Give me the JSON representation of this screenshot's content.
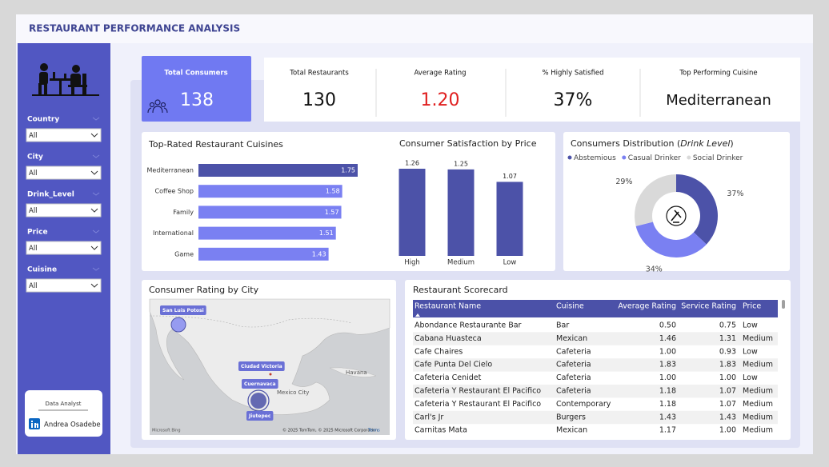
{
  "header": {
    "title": "RESTAURANT PERFORMANCE ANALYSIS"
  },
  "sidebar": {
    "filters": [
      {
        "label": "Country",
        "value": "All"
      },
      {
        "label": "City",
        "value": "All"
      },
      {
        "label": "Drink_Level",
        "value": "All"
      },
      {
        "label": "Price",
        "value": "All"
      },
      {
        "label": "Cuisine",
        "value": "All"
      }
    ],
    "analyst": {
      "role": "Data Analyst",
      "name": "Andrea Osadebe"
    }
  },
  "kpis": [
    {
      "label": "Total Consumers",
      "value": "138"
    },
    {
      "label": "Total Restaurants",
      "value": "130"
    },
    {
      "label": "Average Rating",
      "value": "1.20"
    },
    {
      "label": "% Highly Satisfied",
      "value": "37%"
    },
    {
      "label": "Top Performing Cuisine",
      "value": "Mediterranean"
    }
  ],
  "chart_data": [
    {
      "type": "bar",
      "orientation": "horizontal",
      "title": "Top-Rated Restaurant Cuisines",
      "categories": [
        "Mediterranean",
        "Coffee Shop",
        "Family",
        "International",
        "Game"
      ],
      "values": [
        1.75,
        1.58,
        1.57,
        1.51,
        1.43
      ],
      "colors": [
        "#4c52a8",
        "#7a80f2",
        "#7a80f2",
        "#7a80f2",
        "#7a80f2"
      ]
    },
    {
      "type": "bar",
      "title": "Consumer Satisfaction by Price",
      "categories": [
        "High",
        "Medium",
        "Low"
      ],
      "values": [
        1.26,
        1.25,
        1.07
      ],
      "color": "#4c52a8"
    },
    {
      "type": "pie",
      "title": [
        "Consumers Distribution (",
        "Drink Level",
        ")"
      ],
      "categories": [
        "Abstemious",
        "Casual Drinker",
        "Social Drinker"
      ],
      "values": [
        37,
        34,
        29
      ],
      "value_labels": [
        "37%",
        "34%",
        "29%"
      ],
      "colors": [
        "#4c52a8",
        "#7a80f2",
        "#d9d9d9"
      ],
      "legend": "top-left"
    }
  ],
  "map": {
    "title": "Consumer Rating by City",
    "cities": [
      "San Luis Potosi",
      "Ciudad Victoria",
      "Cuernavaca",
      "Jiutepec"
    ],
    "places": [
      "Havana",
      "Mexico City"
    ],
    "credit": "Microsoft Bing",
    "attribution": "© 2025 TomTom, © 2025 Microsoft Corporation",
    "terms": "Terms"
  },
  "table": {
    "title": "Restaurant Scorecard",
    "columns": [
      "Restaurant Name",
      "Cuisine",
      "Average Rating",
      "Service Rating",
      "Price"
    ],
    "rows": [
      [
        "Abondance Restaurante Bar",
        "Bar",
        "0.50",
        "0.75",
        "Low"
      ],
      [
        "Cabana Huasteca",
        "Mexican",
        "1.46",
        "1.31",
        "Medium"
      ],
      [
        "Cafe Chaires",
        "Cafeteria",
        "1.00",
        "0.93",
        "Low"
      ],
      [
        "Cafe Punta Del Cielo",
        "Cafeteria",
        "1.83",
        "1.83",
        "Medium"
      ],
      [
        "Cafeteria Cenidet",
        "Cafeteria",
        "1.00",
        "1.00",
        "Low"
      ],
      [
        "Cafeteria Y Restaurant El Pacifico",
        "Cafeteria",
        "1.18",
        "1.07",
        "Medium"
      ],
      [
        "Cafeteria Y Restaurant El Pacifico",
        "Contemporary",
        "1.18",
        "1.07",
        "Medium"
      ],
      [
        "Carl's Jr",
        "Burgers",
        "1.43",
        "1.43",
        "Medium"
      ],
      [
        "Carnitas Mata",
        "Mexican",
        "1.17",
        "1.00",
        "Medium"
      ]
    ]
  }
}
